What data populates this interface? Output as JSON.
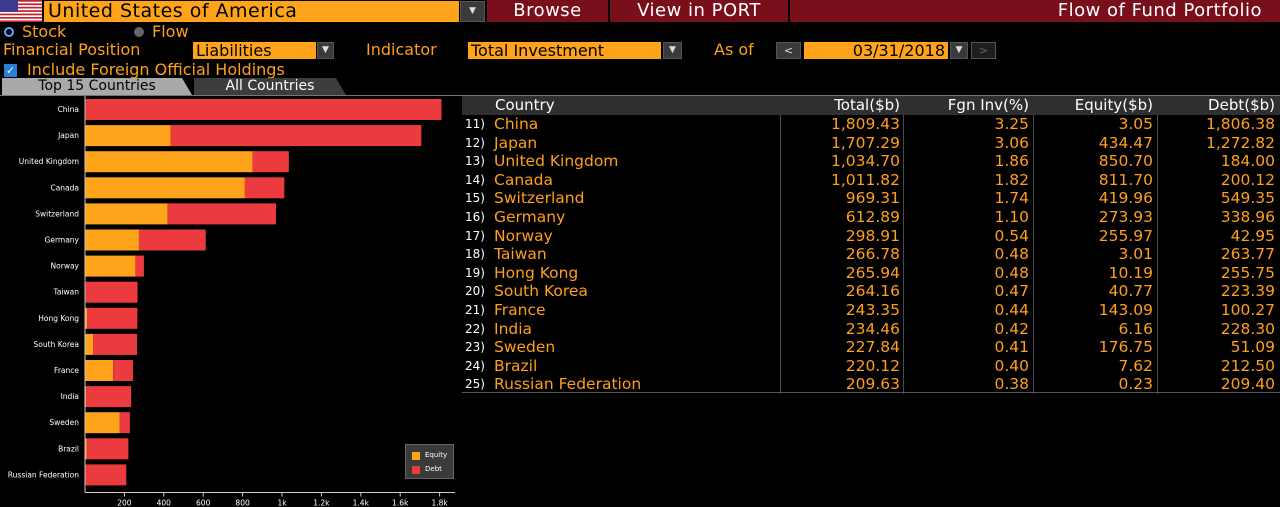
{
  "header": {
    "country": "United States of America",
    "browse_label": "Browse",
    "port_label": "View in PORT",
    "title": "Flow of Fund Portfolio"
  },
  "options": {
    "stock_label": "Stock",
    "flow_label": "Flow",
    "financial_position_label": "Financial Position",
    "financial_position_value": "Liabilities",
    "indicator_label": "Indicator",
    "indicator_value": "Total Investment",
    "as_of_label": "As of",
    "as_of_value": "03/31/2018",
    "prev_glyph": "<",
    "next_glyph": ">",
    "foreign_label": "Include Foreign Official Holdings",
    "foreign_checked": true
  },
  "tabs": [
    {
      "label": "Top 15 Countries",
      "active": true
    },
    {
      "label": "All Countries",
      "active": false
    }
  ],
  "chart_data": {
    "type": "bar",
    "orientation": "horizontal",
    "stacked": true,
    "categories": [
      "China",
      "Japan",
      "United Kingdom",
      "Canada",
      "Switzerland",
      "Germany",
      "Norway",
      "Taiwan",
      "Hong Kong",
      "South Korea",
      "France",
      "India",
      "Sweden",
      "Brazil",
      "Russian Federation"
    ],
    "series": [
      {
        "name": "Equity",
        "color": "#ffa31a",
        "values": [
          3.05,
          434.47,
          850.7,
          811.7,
          419.96,
          273.93,
          255.97,
          3.01,
          10.19,
          40.77,
          143.09,
          6.16,
          176.75,
          7.62,
          0.23
        ]
      },
      {
        "name": "Debt",
        "color": "#ec3b3e",
        "values": [
          1806.38,
          1272.82,
          184.0,
          200.12,
          549.35,
          338.96,
          42.95,
          263.77,
          255.75,
          223.39,
          100.27,
          228.3,
          51.09,
          212.5,
          209.4
        ]
      }
    ],
    "xlim": [
      0,
      1850
    ],
    "xticks": [
      200,
      400,
      600,
      800,
      1000,
      1200,
      1400,
      1600,
      1800
    ],
    "xtick_labels": [
      "200",
      "400",
      "600",
      "800",
      "1k",
      "1.2k",
      "1.4k",
      "1.6k",
      "1.8k"
    ],
    "legend_position": "bottom-right",
    "grid": false
  },
  "table": {
    "columns": [
      "Country",
      "Total($b)",
      "Fgn Inv(%)",
      "Equity($b)",
      "Debt($b)"
    ],
    "rows": [
      {
        "num": "11)",
        "country": "China",
        "total": "1,809.43",
        "fgn": "3.25",
        "equity": "3.05",
        "debt": "1,806.38"
      },
      {
        "num": "12)",
        "country": "Japan",
        "total": "1,707.29",
        "fgn": "3.06",
        "equity": "434.47",
        "debt": "1,272.82"
      },
      {
        "num": "13)",
        "country": "United Kingdom",
        "total": "1,034.70",
        "fgn": "1.86",
        "equity": "850.70",
        "debt": "184.00"
      },
      {
        "num": "14)",
        "country": "Canada",
        "total": "1,011.82",
        "fgn": "1.82",
        "equity": "811.70",
        "debt": "200.12"
      },
      {
        "num": "15)",
        "country": "Switzerland",
        "total": "969.31",
        "fgn": "1.74",
        "equity": "419.96",
        "debt": "549.35"
      },
      {
        "num": "16)",
        "country": "Germany",
        "total": "612.89",
        "fgn": "1.10",
        "equity": "273.93",
        "debt": "338.96"
      },
      {
        "num": "17)",
        "country": "Norway",
        "total": "298.91",
        "fgn": "0.54",
        "equity": "255.97",
        "debt": "42.95"
      },
      {
        "num": "18)",
        "country": "Taiwan",
        "total": "266.78",
        "fgn": "0.48",
        "equity": "3.01",
        "debt": "263.77"
      },
      {
        "num": "19)",
        "country": "Hong Kong",
        "total": "265.94",
        "fgn": "0.48",
        "equity": "10.19",
        "debt": "255.75"
      },
      {
        "num": "20)",
        "country": "South Korea",
        "total": "264.16",
        "fgn": "0.47",
        "equity": "40.77",
        "debt": "223.39"
      },
      {
        "num": "21)",
        "country": "France",
        "total": "243.35",
        "fgn": "0.44",
        "equity": "143.09",
        "debt": "100.27"
      },
      {
        "num": "22)",
        "country": "India",
        "total": "234.46",
        "fgn": "0.42",
        "equity": "6.16",
        "debt": "228.30"
      },
      {
        "num": "23)",
        "country": "Sweden",
        "total": "227.84",
        "fgn": "0.41",
        "equity": "176.75",
        "debt": "51.09"
      },
      {
        "num": "24)",
        "country": "Brazil",
        "total": "220.12",
        "fgn": "0.40",
        "equity": "7.62",
        "debt": "212.50"
      },
      {
        "num": "25)",
        "country": "Russian Federation",
        "total": "209.63",
        "fgn": "0.38",
        "equity": "0.23",
        "debt": "209.40"
      }
    ]
  },
  "colors": {
    "accent": "#ffa31a",
    "menu_bg": "#7a0f1c",
    "debt": "#ec3b3e",
    "equity": "#ffa31a"
  },
  "icons": {
    "flag": "us-flag-icon",
    "dropdown": "chevron-down-icon"
  }
}
